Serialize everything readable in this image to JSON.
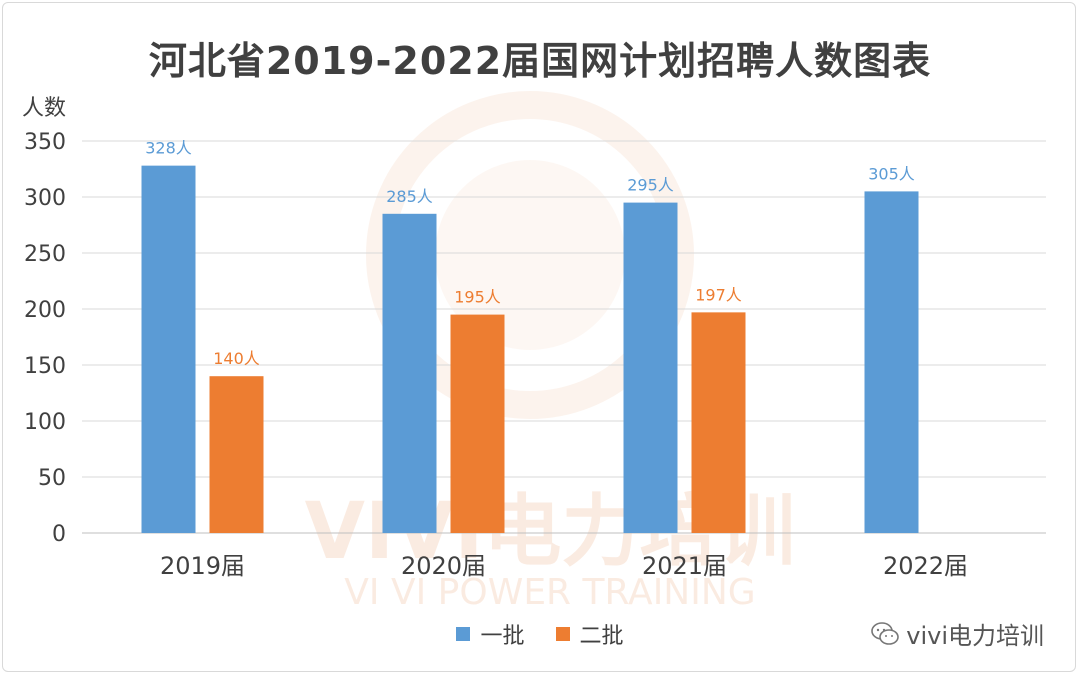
{
  "chart_data": {
    "type": "bar",
    "title": "河北省2019-2022届国网计划招聘人数图表",
    "ylabel": "人数",
    "xlabel": "",
    "categories": [
      "2019届",
      "2020届",
      "2021届",
      "2022届"
    ],
    "ylim": [
      0,
      350
    ],
    "yticks": [
      "0",
      "50",
      "100",
      "150",
      "200",
      "250",
      "300",
      "350"
    ],
    "ytick_values": [
      0,
      50,
      100,
      150,
      200,
      250,
      300,
      350
    ],
    "grid": true,
    "legend_position": "bottom",
    "series": [
      {
        "name": "一批",
        "color": "#5b9bd5",
        "values": [
          328,
          285,
          295,
          305
        ],
        "labels": [
          "328人",
          "285人",
          "295人",
          "305人"
        ]
      },
      {
        "name": "二批",
        "color": "#ed7d31",
        "values": [
          140,
          195,
          197,
          null
        ],
        "labels": [
          "140人",
          "195人",
          "197人",
          ""
        ]
      }
    ]
  },
  "watermark": {
    "main": "VIVI电力培训",
    "sub": "VI VI POWER TRAINING"
  },
  "wechat": {
    "icon": "wechat-icon",
    "text": "vivi电力培训"
  }
}
